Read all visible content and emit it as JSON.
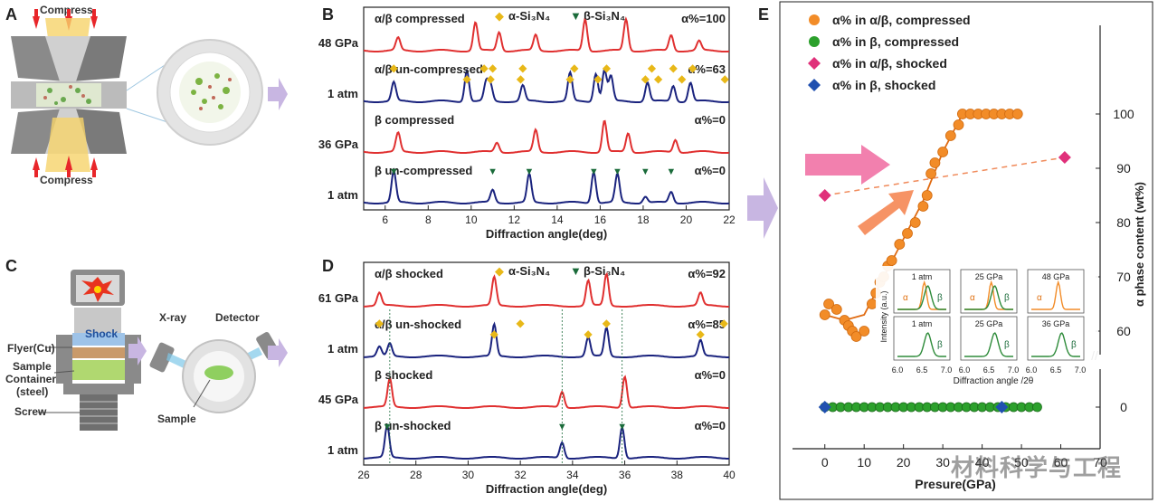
{
  "panels": {
    "A": "A",
    "B": "B",
    "C": "C",
    "D": "D",
    "E": "E"
  },
  "panelA": {
    "compress_top": "Compress",
    "compress_bottom": "Compress"
  },
  "panelC": {
    "flyer": "Flyer(Cu)",
    "shock": "Shock",
    "sample": "Sample",
    "container": "Container",
    "steel": "(steel)",
    "screw": "Screw",
    "xray": "X-ray",
    "detector": "Detector",
    "sample_label": "Sample"
  },
  "watermark": "材料科学与工程",
  "chart_data": [
    {
      "id": "B",
      "type": "line",
      "xlabel": "Diffraction angle(deg)",
      "ylabel": "Intensity (a.u.)",
      "xlim": [
        5,
        22
      ],
      "xticks": [
        "6",
        "8",
        "10",
        "12",
        "14",
        "16",
        "18",
        "20",
        "22"
      ],
      "legend": [
        {
          "symbol": "◆",
          "label": "α-Si₃N₄",
          "color": "#e8b818"
        },
        {
          "symbol": "▼",
          "label": "β-Si₃N₄",
          "color": "#1a6b3a"
        }
      ],
      "series": [
        {
          "name": "α/β compressed",
          "pressure": "48 GPa",
          "alpha": "α%=100",
          "color": "#e03030",
          "peaks": [
            [
              6.6,
              0.4
            ],
            [
              10.2,
              0.9
            ],
            [
              11.3,
              0.6
            ],
            [
              13.0,
              0.5
            ],
            [
              15.3,
              1.0
            ],
            [
              17.2,
              1.0
            ],
            [
              19.3,
              0.5
            ],
            [
              20.6,
              0.3
            ]
          ]
        },
        {
          "name": "α/β un-compressed",
          "pressure": "1 atm",
          "alpha": "α%=63",
          "color": "#1a237e",
          "peaks": [
            [
              6.4,
              0.6
            ],
            [
              9.8,
              1.0
            ],
            [
              10.7,
              0.6
            ],
            [
              10.9,
              0.5
            ],
            [
              12.4,
              0.5
            ],
            [
              14.6,
              0.9
            ],
            [
              15.8,
              0.9
            ],
            [
              16.2,
              1.0
            ],
            [
              16.5,
              0.8
            ],
            [
              18.2,
              0.6
            ],
            [
              19.4,
              0.5
            ],
            [
              20.2,
              0.6
            ]
          ],
          "alpha_markers": [
            6.4,
            9.8,
            10.6,
            10.9,
            11.0,
            12.3,
            12.4,
            14.6,
            14.8,
            15.9,
            16.3,
            18.1,
            18.4,
            18.7,
            19.4,
            19.8,
            20.3,
            21.8
          ],
          "beta_markers": []
        },
        {
          "name": "β compressed",
          "pressure": "36 GPa",
          "alpha": "α%=0",
          "color": "#e03030",
          "peaks": [
            [
              6.6,
              0.6
            ],
            [
              11.2,
              0.3
            ],
            [
              13.0,
              0.7
            ],
            [
              16.2,
              1.0
            ],
            [
              17.3,
              0.6
            ],
            [
              19.5,
              0.4
            ]
          ]
        },
        {
          "name": "β un-compressed",
          "pressure": "1 atm",
          "alpha": "α%=0",
          "color": "#1a237e",
          "peaks": [
            [
              6.4,
              1.0
            ],
            [
              11.0,
              0.4
            ],
            [
              12.7,
              0.9
            ],
            [
              15.7,
              1.0
            ],
            [
              16.8,
              0.9
            ],
            [
              18.1,
              0.2
            ],
            [
              19.3,
              0.35
            ]
          ],
          "alpha_markers": [],
          "beta_markers": [
            6.4,
            11.0,
            12.7,
            15.7,
            16.8,
            18.1,
            19.3
          ]
        }
      ]
    },
    {
      "id": "D",
      "type": "line",
      "xlabel": "Diffraction angle(deg)",
      "ylabel": "Intensity (a.u.)",
      "xlim": [
        26,
        40
      ],
      "xticks": [
        "26",
        "28",
        "30",
        "32",
        "34",
        "36",
        "38",
        "40"
      ],
      "legend": [
        {
          "symbol": "◆",
          "label": "α-Si₃N₄",
          "color": "#e8b818"
        },
        {
          "symbol": "▼",
          "label": "β-Si₃N₄",
          "color": "#1a6b3a"
        }
      ],
      "series": [
        {
          "name": "α/β shocked",
          "pressure": "61 GPa",
          "alpha": "α%=92",
          "color": "#e03030",
          "peaks": [
            [
              26.6,
              0.4
            ],
            [
              31.0,
              0.9
            ],
            [
              34.6,
              0.8
            ],
            [
              35.3,
              1.0
            ],
            [
              38.9,
              0.4
            ]
          ]
        },
        {
          "name": "α/β un-shocked",
          "pressure": "1 atm",
          "alpha": "α%=85",
          "color": "#1a237e",
          "peaks": [
            [
              26.6,
              0.3
            ],
            [
              27.0,
              0.4
            ],
            [
              31.0,
              1.0
            ],
            [
              34.6,
              0.6
            ],
            [
              35.3,
              0.9
            ],
            [
              38.9,
              0.5
            ]
          ],
          "alpha_markers": [
            26.6,
            31.0,
            32.0,
            34.6,
            35.3,
            38.9,
            39.8
          ],
          "beta_markers": []
        },
        {
          "name": "β shocked",
          "pressure": "45 GPa",
          "alpha": "α%=0",
          "color": "#e03030",
          "peaks": [
            [
              27.0,
              0.9
            ],
            [
              33.6,
              0.5
            ],
            [
              36.0,
              1.0
            ]
          ]
        },
        {
          "name": "β un-shocked",
          "pressure": "1 atm",
          "alpha": "α%=0",
          "color": "#1a237e",
          "peaks": [
            [
              26.9,
              1.0
            ],
            [
              33.6,
              0.5
            ],
            [
              35.9,
              1.0
            ]
          ],
          "alpha_markers": [],
          "beta_markers": [
            26.9,
            33.6,
            35.9
          ]
        }
      ]
    },
    {
      "id": "E",
      "type": "scatter",
      "xlabel": "Presure(GPa)",
      "ylabel_right": "α phase content (wt%)",
      "ylabel_left": "Intensity (a.u.)",
      "xlim": [
        -5,
        70
      ],
      "xticks": [
        "0",
        "10",
        "20",
        "30",
        "40",
        "50",
        "60",
        "70"
      ],
      "yticks_upper": [
        "60",
        "70",
        "80",
        "90",
        "100"
      ],
      "yticks_lower": [
        "0"
      ],
      "legend": [
        {
          "label": "α% in α/β,    compressed",
          "color": "#f28c28",
          "shape": "circle"
        },
        {
          "label": "α% in β,      compressed",
          "color": "#2ca02c",
          "shape": "circle"
        },
        {
          "label": "α% in α/β,    shocked",
          "color": "#e0307a",
          "shape": "diamond"
        },
        {
          "label": "α% in β,      shocked",
          "color": "#2050b0",
          "shape": "diamond"
        }
      ],
      "series": [
        {
          "name": "α% in α/β, compressed",
          "points": [
            [
              0,
              63
            ],
            [
              1,
              65
            ],
            [
              3,
              64
            ],
            [
              5,
              62
            ],
            [
              6,
              61
            ],
            [
              7,
              60
            ],
            [
              8,
              59
            ],
            [
              10,
              60
            ],
            [
              12,
              65
            ],
            [
              13,
              67
            ],
            [
              14,
              69
            ],
            [
              15,
              70
            ],
            [
              16,
              72
            ],
            [
              17,
              73
            ],
            [
              19,
              76
            ],
            [
              21,
              78
            ],
            [
              23,
              80
            ],
            [
              25,
              83
            ],
            [
              26,
              85
            ],
            [
              27,
              89
            ],
            [
              28,
              91
            ],
            [
              30,
              93
            ],
            [
              32,
              96
            ],
            [
              34,
              98
            ],
            [
              35,
              100
            ],
            [
              37,
              100
            ],
            [
              39,
              100
            ],
            [
              41,
              100
            ],
            [
              43,
              100
            ],
            [
              45,
              100
            ],
            [
              47,
              100
            ],
            [
              49,
              100
            ]
          ],
          "fit": [
            [
              0,
              63
            ],
            [
              5,
              62
            ],
            [
              10,
              63
            ],
            [
              15,
              70
            ],
            [
              20,
              77
            ],
            [
              25,
              84
            ],
            [
              30,
              93
            ],
            [
              35,
              100
            ],
            [
              50,
              100
            ]
          ]
        },
        {
          "name": "α% in β, compressed",
          "points": [
            [
              0,
              0
            ],
            [
              2,
              0
            ],
            [
              4,
              0
            ],
            [
              6,
              0
            ],
            [
              8,
              0
            ],
            [
              10,
              0
            ],
            [
              12,
              0
            ],
            [
              14,
              0
            ],
            [
              16,
              0
            ],
            [
              18,
              0
            ],
            [
              20,
              0
            ],
            [
              22,
              0
            ],
            [
              24,
              0
            ],
            [
              26,
              0
            ],
            [
              28,
              0
            ],
            [
              30,
              0
            ],
            [
              32,
              0
            ],
            [
              34,
              0
            ],
            [
              36,
              0
            ],
            [
              38,
              0
            ],
            [
              40,
              0
            ],
            [
              42,
              0
            ],
            [
              44,
              0
            ],
            [
              46,
              0
            ],
            [
              48,
              0
            ],
            [
              50,
              0
            ],
            [
              52,
              0
            ],
            [
              54,
              0
            ]
          ]
        },
        {
          "name": "α% in α/β, shocked",
          "points": [
            [
              0,
              85
            ],
            [
              61,
              92
            ]
          ]
        },
        {
          "name": "α% in β, shocked",
          "points": [
            [
              0,
              0
            ],
            [
              45,
              0
            ]
          ]
        }
      ],
      "inset": {
        "ylabel": "Intensity (a.u.)",
        "xlabel": "Diffraction angle /2θ",
        "xticks": [
          "6.0",
          "6.5",
          "7.0"
        ],
        "cells": [
          {
            "label": "1 atm",
            "a": "α",
            "b": "β"
          },
          {
            "label": "25 GPa",
            "a": "α",
            "b": "β"
          },
          {
            "label": "48 GPa",
            "a": "α",
            "b": ""
          },
          {
            "label": "1 atm",
            "a": "",
            "b": "β"
          },
          {
            "label": "25 GPa",
            "a": "",
            "b": "β"
          },
          {
            "label": "36 GPa",
            "a": "",
            "b": "β"
          }
        ]
      }
    }
  ]
}
